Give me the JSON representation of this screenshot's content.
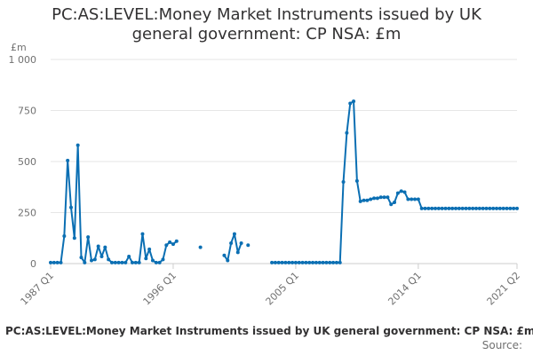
{
  "page": {
    "title_line1": "PC:AS:LEVEL:Money Market Instruments issued by UK",
    "title_line2": "general government: CP NSA: £m",
    "footer_title": "PC:AS:LEVEL:Money Market Instruments issued by UK general government: CP NSA: £m",
    "source_label": "Source:"
  },
  "colors": {
    "series": "#0b6fb3",
    "grid": "#e6e6e6",
    "axis_text": "#707070"
  },
  "chart_data": {
    "type": "line",
    "title": "PC:AS:LEVEL:Money Market Instruments issued by UK general government: CP NSA: £m",
    "ylabel": "£m",
    "ylim": [
      0,
      1000
    ],
    "yticks": [
      0,
      250,
      500,
      750,
      1000
    ],
    "ytick_labels": [
      "0",
      "250",
      "500",
      "750",
      "1 000"
    ],
    "xlim": [
      "1987 Q1",
      "2021 Q2"
    ],
    "xtick_labels": [
      "1987 Q1",
      "1996 Q1",
      "2005 Q1",
      "2014 Q1",
      "2021 Q2"
    ],
    "grid": true,
    "legend": "none",
    "series": [
      {
        "values": [
          [
            "1987 Q1",
            5
          ],
          [
            "1987 Q2",
            5
          ],
          [
            "1987 Q3",
            5
          ],
          [
            "1987 Q4",
            5
          ],
          [
            "1988 Q1",
            135
          ],
          [
            "1988 Q2",
            505
          ],
          [
            "1988 Q3",
            275
          ],
          [
            "1988 Q4",
            125
          ],
          [
            "1989 Q1",
            580
          ],
          [
            "1989 Q2",
            30
          ],
          [
            "1989 Q3",
            5
          ],
          [
            "1989 Q4",
            130
          ],
          [
            "1990 Q1",
            15
          ],
          [
            "1990 Q2",
            20
          ],
          [
            "1990 Q3",
            85
          ],
          [
            "1990 Q4",
            35
          ],
          [
            "1991 Q1",
            80
          ],
          [
            "1991 Q2",
            20
          ],
          [
            "1991 Q3",
            5
          ],
          [
            "1991 Q4",
            5
          ],
          [
            "1992 Q1",
            5
          ],
          [
            "1992 Q2",
            5
          ],
          [
            "1992 Q3",
            5
          ],
          [
            "1992 Q4",
            35
          ],
          [
            "1993 Q1",
            5
          ],
          [
            "1993 Q2",
            5
          ],
          [
            "1993 Q3",
            5
          ],
          [
            "1993 Q4",
            145
          ],
          [
            "1994 Q1",
            25
          ],
          [
            "1994 Q2",
            70
          ],
          [
            "1994 Q3",
            15
          ],
          [
            "1994 Q4",
            5
          ],
          [
            "1995 Q1",
            5
          ],
          [
            "1995 Q2",
            20
          ],
          [
            "1995 Q3",
            90
          ],
          [
            "1995 Q4",
            105
          ],
          [
            "1996 Q1",
            95
          ],
          [
            "1996 Q2",
            110
          ],
          [
            "1996 Q3",
            null
          ],
          [
            "1996 Q4",
            null
          ],
          [
            "1997 Q1",
            null
          ],
          [
            "1997 Q2",
            null
          ],
          [
            "1997 Q3",
            null
          ],
          [
            "1997 Q4",
            null
          ],
          [
            "1998 Q1",
            80
          ],
          [
            "1998 Q2",
            null
          ],
          [
            "1998 Q3",
            null
          ],
          [
            "1998 Q4",
            null
          ],
          [
            "1999 Q1",
            null
          ],
          [
            "1999 Q2",
            null
          ],
          [
            "1999 Q3",
            null
          ],
          [
            "1999 Q4",
            40
          ],
          [
            "2000 Q1",
            15
          ],
          [
            "2000 Q2",
            100
          ],
          [
            "2000 Q3",
            145
          ],
          [
            "2000 Q4",
            55
          ],
          [
            "2001 Q1",
            100
          ],
          [
            "2001 Q2",
            null
          ],
          [
            "2001 Q3",
            90
          ],
          [
            "2001 Q4",
            null
          ],
          [
            "2002 Q1",
            null
          ],
          [
            "2002 Q2",
            null
          ],
          [
            "2002 Q3",
            null
          ],
          [
            "2002 Q4",
            null
          ],
          [
            "2003 Q1",
            null
          ],
          [
            "2003 Q2",
            5
          ],
          [
            "2003 Q3",
            5
          ],
          [
            "2003 Q4",
            5
          ],
          [
            "2004 Q1",
            5
          ],
          [
            "2004 Q2",
            5
          ],
          [
            "2004 Q3",
            5
          ],
          [
            "2004 Q4",
            5
          ],
          [
            "2005 Q1",
            5
          ],
          [
            "2005 Q2",
            5
          ],
          [
            "2005 Q3",
            5
          ],
          [
            "2005 Q4",
            5
          ],
          [
            "2006 Q1",
            5
          ],
          [
            "2006 Q2",
            5
          ],
          [
            "2006 Q3",
            5
          ],
          [
            "2006 Q4",
            5
          ],
          [
            "2007 Q1",
            5
          ],
          [
            "2007 Q2",
            5
          ],
          [
            "2007 Q3",
            5
          ],
          [
            "2007 Q4",
            5
          ],
          [
            "2008 Q1",
            5
          ],
          [
            "2008 Q2",
            5
          ],
          [
            "2008 Q3",
            400
          ],
          [
            "2008 Q4",
            640
          ],
          [
            "2009 Q1",
            785
          ],
          [
            "2009 Q2",
            795
          ],
          [
            "2009 Q3",
            405
          ],
          [
            "2009 Q4",
            305
          ],
          [
            "2010 Q1",
            310
          ],
          [
            "2010 Q2",
            310
          ],
          [
            "2010 Q3",
            315
          ],
          [
            "2010 Q4",
            320
          ],
          [
            "2011 Q1",
            320
          ],
          [
            "2011 Q2",
            325
          ],
          [
            "2011 Q3",
            325
          ],
          [
            "2011 Q4",
            325
          ],
          [
            "2012 Q1",
            290
          ],
          [
            "2012 Q2",
            300
          ],
          [
            "2012 Q3",
            345
          ],
          [
            "2012 Q4",
            355
          ],
          [
            "2013 Q1",
            350
          ],
          [
            "2013 Q2",
            315
          ],
          [
            "2013 Q3",
            315
          ],
          [
            "2013 Q4",
            315
          ],
          [
            "2014 Q1",
            315
          ],
          [
            "2014 Q2",
            270
          ],
          [
            "2014 Q3",
            270
          ],
          [
            "2014 Q4",
            270
          ],
          [
            "2015 Q1",
            270
          ],
          [
            "2015 Q2",
            270
          ],
          [
            "2015 Q3",
            270
          ],
          [
            "2015 Q4",
            270
          ],
          [
            "2016 Q1",
            270
          ],
          [
            "2016 Q2",
            270
          ],
          [
            "2016 Q3",
            270
          ],
          [
            "2016 Q4",
            270
          ],
          [
            "2017 Q1",
            270
          ],
          [
            "2017 Q2",
            270
          ],
          [
            "2017 Q3",
            270
          ],
          [
            "2017 Q4",
            270
          ],
          [
            "2018 Q1",
            270
          ],
          [
            "2018 Q2",
            270
          ],
          [
            "2018 Q3",
            270
          ],
          [
            "2018 Q4",
            270
          ],
          [
            "2019 Q1",
            270
          ],
          [
            "2019 Q2",
            270
          ],
          [
            "2019 Q3",
            270
          ],
          [
            "2019 Q4",
            270
          ],
          [
            "2020 Q1",
            270
          ],
          [
            "2020 Q2",
            270
          ],
          [
            "2020 Q3",
            270
          ],
          [
            "2020 Q4",
            270
          ],
          [
            "2021 Q1",
            270
          ],
          [
            "2021 Q2",
            270
          ]
        ]
      }
    ]
  }
}
